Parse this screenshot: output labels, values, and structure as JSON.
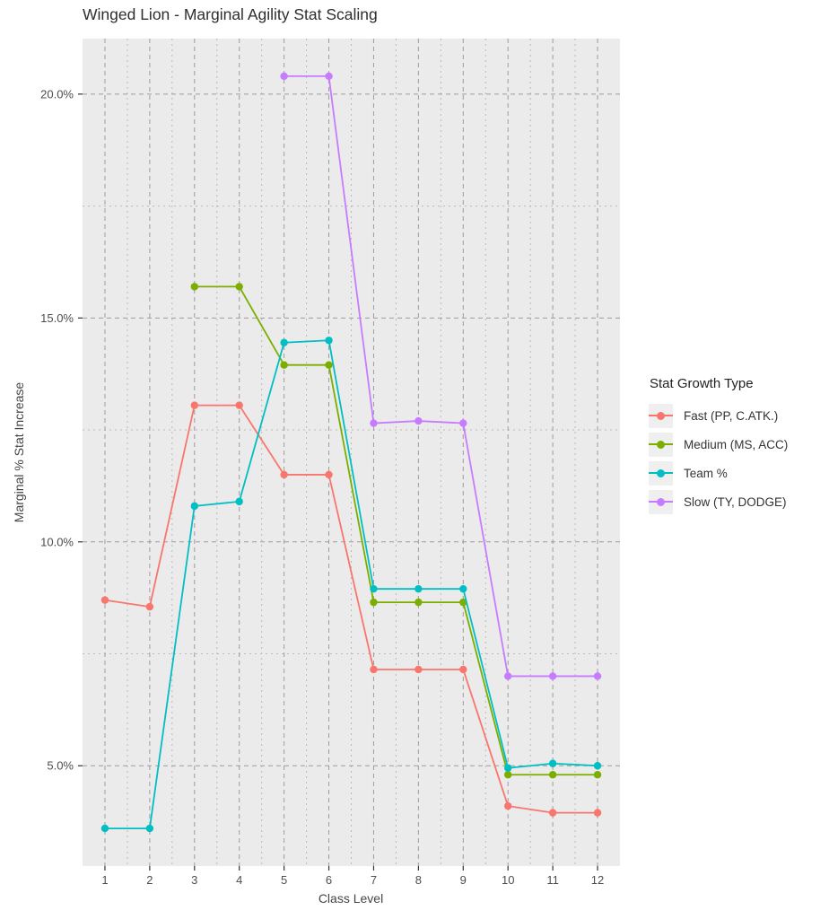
{
  "legend": {
    "title": "Stat Growth Type"
  },
  "ui_colors": {
    "panel_bg": "#EBEBEB",
    "grid_major": "#9c9c9c",
    "grid_minor": "#b9b9b9",
    "tick_mark": "#333333",
    "axis_text": "#4d4d4d"
  },
  "chart_data": {
    "type": "line",
    "title": "Winged Lion - Marginal Agility Stat Scaling",
    "xlabel": "Class Level",
    "ylabel": "Marginal % Stat Increase",
    "legend_position": "right",
    "grid": "dashed",
    "x_range": [
      0.5,
      12.5
    ],
    "y_range": [
      2.76,
      21.24
    ],
    "x_ticks": [
      1,
      2,
      3,
      4,
      5,
      6,
      7,
      8,
      9,
      10,
      11,
      12
    ],
    "x_tick_labels": [
      "1",
      "2",
      "3",
      "4",
      "5",
      "6",
      "7",
      "8",
      "9",
      "10",
      "11",
      "12"
    ],
    "x_minor": [
      1.5,
      2.5,
      3.5,
      4.5,
      5.5,
      6.5,
      7.5,
      8.5,
      9.5,
      10.5,
      11.5
    ],
    "y_tick_values": [
      5,
      10,
      15,
      20
    ],
    "y_tick_labels": [
      "5.0%",
      "10.0%",
      "15.0%",
      "20.0%"
    ],
    "y_minor": [
      7.5,
      12.5,
      17.5
    ],
    "series": [
      {
        "name": "Fast (PP, C.ATK.)",
        "color": "#F8766D",
        "x": [
          1,
          2,
          3,
          4,
          5,
          6,
          7,
          8,
          9,
          10,
          11,
          12
        ],
        "values": [
          8.7,
          8.55,
          13.05,
          13.05,
          11.5,
          11.5,
          7.15,
          7.15,
          7.15,
          4.1,
          3.95,
          3.95
        ]
      },
      {
        "name": "Medium (MS, ACC)",
        "color": "#7CAE00",
        "x": [
          3,
          4,
          5,
          6,
          7,
          8,
          9,
          10,
          11,
          12
        ],
        "values": [
          15.7,
          15.7,
          13.95,
          13.95,
          8.65,
          8.65,
          8.65,
          4.8,
          4.8,
          4.8
        ]
      },
      {
        "name": "Team %",
        "color": "#00BFC4",
        "x": [
          1,
          2,
          3,
          4,
          5,
          6,
          7,
          8,
          9,
          10,
          11,
          12
        ],
        "values": [
          3.6,
          3.6,
          10.8,
          10.9,
          14.45,
          14.5,
          8.95,
          8.95,
          8.95,
          4.95,
          5.05,
          5.0
        ]
      },
      {
        "name": "Slow (TY, DODGE)",
        "color": "#C77CFF",
        "x": [
          5,
          6,
          7,
          8,
          9,
          10,
          11,
          12
        ],
        "values": [
          20.4,
          20.4,
          12.65,
          12.7,
          12.65,
          7.0,
          7.0,
          7.0
        ]
      }
    ]
  }
}
